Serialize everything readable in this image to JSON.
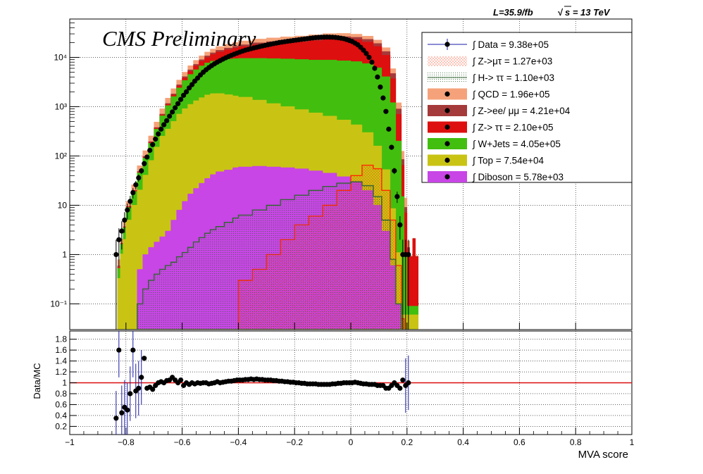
{
  "header": {
    "luminosity": "L=35.9/fb",
    "energy": "s = 13 TeV",
    "experiment": "CMS Preliminary"
  },
  "legend": [
    {
      "label": "∫ Data = 9.38e+05",
      "color": "#000000",
      "style": "data"
    },
    {
      "label": "∫ Z->μτ = 1.27e+03",
      "color": "#ff2a00",
      "style": "hatch-red"
    },
    {
      "label": "∫ H-> ττ = 1.10e+03",
      "color": "#336633",
      "style": "hatch-green"
    },
    {
      "label": "∫ QCD = 1.96e+05",
      "color": "#f5a27a",
      "style": "fill"
    },
    {
      "label": "∫ Z->ee/ μμ = 4.21e+04",
      "color": "#a53a3a",
      "style": "fill"
    },
    {
      "label": "∫ Z-> ττ = 2.10e+05",
      "color": "#dd0f0f",
      "style": "fill"
    },
    {
      "label": "∫ W+Jets = 4.05e+05",
      "color": "#42be0f",
      "style": "fill"
    },
    {
      "label": "∫ Top = 7.54e+04",
      "color": "#c9c414",
      "style": "fill"
    },
    {
      "label": "∫ Diboson = 5.78e+03",
      "color": "#c845e6",
      "style": "fill"
    }
  ],
  "chart_data": [
    {
      "type": "area",
      "panel": "main",
      "scale": "log",
      "xlim": [
        -1,
        1
      ],
      "ylim": [
        0.03,
        60000
      ],
      "ytick_labels": [
        "10⁻¹",
        "1",
        "10",
        "10²",
        "10³",
        "10⁴"
      ],
      "ytick_values": [
        0.1,
        1,
        10,
        100,
        1000,
        10000
      ],
      "x": [
        -0.83,
        -0.82,
        -0.81,
        -0.8,
        -0.78,
        -0.76,
        -0.74,
        -0.72,
        -0.7,
        -0.68,
        -0.66,
        -0.64,
        -0.62,
        -0.6,
        -0.58,
        -0.56,
        -0.54,
        -0.52,
        -0.5,
        -0.48,
        -0.45,
        -0.42,
        -0.4,
        -0.35,
        -0.3,
        -0.25,
        -0.2,
        -0.15,
        -0.1,
        -0.05,
        0.0,
        0.04,
        0.08,
        0.11,
        0.14,
        0.16,
        0.18,
        0.19,
        0.2,
        0.21,
        0.22,
        0.23
      ],
      "series": [
        {
          "name": "Diboson",
          "color": "#c845e6",
          "values": [
            0.03,
            0.03,
            0.03,
            0.03,
            0.03,
            0.5,
            1.0,
            1.4,
            1.8,
            2.3,
            3.0,
            5.0,
            8.0,
            12.0,
            17.0,
            22.0,
            28.0,
            35.0,
            42.0,
            48.0,
            52.0,
            58.0,
            60.0,
            62.0,
            60.0,
            58.0,
            55.0,
            50.0,
            45.0,
            38.0,
            30.0,
            20.0,
            10.0,
            3.0,
            0.6,
            0.1,
            0.03,
            0.03,
            0.03,
            0.03,
            0.03,
            0.03
          ]
        },
        {
          "name": "Top",
          "color": "#c9c414",
          "values": [
            0.3,
            1.0,
            2.0,
            5.0,
            10.0,
            20.0,
            40.0,
            80.0,
            150.0,
            250.0,
            350.0,
            500.0,
            700.0,
            900.0,
            1100.0,
            1300.0,
            1500.0,
            1700.0,
            1800.0,
            1800.0,
            1700.0,
            1600.0,
            1500.0,
            1300.0,
            1100.0,
            950.0,
            820.0,
            700.0,
            600.0,
            500.0,
            400.0,
            280.0,
            150.0,
            50.0,
            8.0,
            1.0,
            0.03,
            0.03,
            0.03,
            0.03,
            0.03,
            0.03
          ]
        },
        {
          "name": "W+Jets",
          "color": "#42be0f",
          "values": [
            0.2,
            0.6,
            1.5,
            4.0,
            9.0,
            25.0,
            50.0,
            100.0,
            200.0,
            400.0,
            700.0,
            1100.0,
            1700.0,
            2500.0,
            3400.0,
            4300.0,
            5200.0,
            6000.0,
            6600.0,
            7000.0,
            7500.0,
            7800.0,
            8000.0,
            8200.0,
            8300.0,
            8300.0,
            8200.0,
            8100.0,
            8200.0,
            8000.0,
            7800.0,
            7200.0,
            6000.0,
            4000.0,
            1200.0,
            200.0,
            15.0,
            1.0,
            0.03,
            0.03,
            0.03,
            0.03
          ]
        },
        {
          "name": "Z-> ττ",
          "color": "#dd0f0f",
          "values": [
            0.03,
            0.03,
            0.1,
            0.3,
            0.8,
            2.0,
            4.0,
            8.0,
            15.0,
            30.0,
            60.0,
            120.0,
            220.0,
            400.0,
            700.0,
            1100.0,
            1600.0,
            2200.0,
            3000.0,
            4000.0,
            5000.0,
            6000.0,
            7000.0,
            8500.0,
            9500.0,
            10500.0,
            11500.0,
            13000.0,
            14500.0,
            15000.0,
            14500.0,
            13000.0,
            10500.0,
            7000.0,
            2500.0,
            500.0,
            50.0,
            6.0,
            1.0,
            0.8,
            2.0,
            0.8
          ]
        },
        {
          "name": "Z->ee/ μμ",
          "color": "#a53a3a",
          "values": [
            0.03,
            0.03,
            0.05,
            0.1,
            0.3,
            1.0,
            3.0,
            6.0,
            12.0,
            25.0,
            50.0,
            90.0,
            150.0,
            250.0,
            380.0,
            500.0,
            650.0,
            800.0,
            950.0,
            1100.0,
            1250.0,
            1400.0,
            1500.0,
            1700.0,
            1900.0,
            2100.0,
            2300.0,
            2500.0,
            2700.0,
            2800.0,
            2800.0,
            2700.0,
            2500.0,
            2100.0,
            1000.0,
            200.0,
            20.0,
            2.0,
            0.3,
            0.03,
            0.03,
            0.03
          ]
        },
        {
          "name": "QCD",
          "color": "#f5a27a",
          "values": [
            0.2,
            0.4,
            1.0,
            2.5,
            6.0,
            15.0,
            30.0,
            60.0,
            110.0,
            200.0,
            330.0,
            500.0,
            700.0,
            950.0,
            1200.0,
            1500.0,
            1800.0,
            2100.0,
            2400.0,
            2700.0,
            3000.0,
            3300.0,
            3500.0,
            3800.0,
            4000.0,
            4200.0,
            4300.0,
            4400.0,
            4400.0,
            4300.0,
            4100.0,
            3800.0,
            3300.0,
            2600.0,
            1200.0,
            300.0,
            40.0,
            5.0,
            0.5,
            0.03,
            0.03,
            0.03
          ]
        }
      ],
      "overlays": [
        {
          "name": "Z->μτ",
          "color": "#ff2a00",
          "values": [
            0.03,
            0.03,
            0.03,
            0.03,
            0.03,
            0.03,
            0.03,
            0.03,
            0.03,
            0.03,
            0.03,
            0.03,
            0.03,
            0.03,
            0.03,
            0.03,
            0.03,
            0.03,
            0.03,
            0.03,
            0.03,
            0.03,
            0.3,
            0.5,
            1.0,
            2.0,
            4.0,
            6.0,
            10.0,
            20.0,
            40.0,
            65.0,
            55.0,
            20.0,
            5.0,
            0.6,
            0.05,
            0.03,
            0.03,
            0.03,
            0.03,
            0.03
          ]
        },
        {
          "name": "H-> ττ",
          "color": "#336633",
          "values": [
            0.03,
            0.03,
            0.03,
            0.03,
            0.03,
            0.1,
            0.2,
            0.3,
            0.4,
            0.5,
            0.6,
            0.7,
            0.9,
            1.1,
            1.4,
            1.8,
            2.2,
            2.7,
            3.2,
            3.7,
            4.5,
            5.5,
            6.3,
            8.0,
            10.0,
            13.0,
            16.0,
            20.0,
            24.0,
            28.0,
            30.0,
            25.0,
            15.0,
            5.0,
            0.8,
            0.1,
            0.03,
            0.03,
            0.03,
            0.03,
            0.03,
            0.03
          ]
        }
      ],
      "data_points": {
        "name": "Data",
        "x": [
          -0.835,
          -0.825,
          -0.815,
          -0.805,
          -0.795,
          -0.785,
          -0.775,
          -0.765,
          -0.755,
          -0.745,
          -0.735,
          -0.725,
          -0.715,
          -0.705,
          -0.695,
          -0.685,
          -0.675,
          -0.665,
          -0.655,
          -0.645,
          -0.635,
          -0.625,
          -0.615,
          -0.605,
          -0.595,
          -0.585,
          -0.575,
          -0.565,
          -0.555,
          -0.545,
          -0.535,
          -0.525,
          -0.515,
          -0.505,
          -0.495,
          -0.485,
          -0.475,
          -0.465,
          -0.455,
          -0.445,
          -0.435,
          -0.425,
          -0.415,
          -0.405,
          -0.395,
          -0.385,
          -0.375,
          -0.365,
          -0.355,
          -0.345,
          -0.335,
          -0.325,
          -0.315,
          -0.305,
          -0.295,
          -0.285,
          -0.275,
          -0.265,
          -0.255,
          -0.245,
          -0.235,
          -0.225,
          -0.215,
          -0.205,
          -0.195,
          -0.185,
          -0.175,
          -0.165,
          -0.155,
          -0.145,
          -0.135,
          -0.125,
          -0.115,
          -0.105,
          -0.095,
          -0.085,
          -0.075,
          -0.065,
          -0.055,
          -0.045,
          -0.035,
          -0.025,
          -0.015,
          -0.005,
          0.005,
          0.015,
          0.025,
          0.035,
          0.045,
          0.055,
          0.065,
          0.075,
          0.085,
          0.095,
          0.105,
          0.115,
          0.125,
          0.135,
          0.145,
          0.155,
          0.165,
          0.175,
          0.185,
          0.195,
          0.205
        ],
        "y": [
          1.0,
          2.0,
          3.0,
          5.0,
          8.0,
          12.0,
          18.0,
          26.0,
          36.0,
          50.0,
          70.0,
          95.0,
          130.0,
          170.0,
          220.0,
          280.0,
          350.0,
          430.0,
          520.0,
          640.0,
          780.0,
          950.0,
          1150.0,
          1400.0,
          1700.0,
          2000.0,
          2400.0,
          2800.0,
          3300.0,
          3800.0,
          4400.0,
          5000.0,
          5600.0,
          6200.0,
          6800.0,
          7400.0,
          8000.0,
          8600.0,
          9200.0,
          9800.0,
          10400.0,
          11000.0,
          11600.0,
          12200.0,
          12800.0,
          13400.0,
          14000.0,
          14500.0,
          15000.0,
          15500.0,
          16000.0,
          16500.0,
          17000.0,
          17500.0,
          18000.0,
          18500.0,
          19000.0,
          19500.0,
          20000.0,
          20400.0,
          20800.0,
          21200.0,
          21600.0,
          22000.0,
          22400.0,
          22800.0,
          23200.0,
          23600.0,
          24000.0,
          24400.0,
          24800.0,
          25200.0,
          25400.0,
          25600.0,
          25700.0,
          25800.0,
          25700.0,
          25600.0,
          25400.0,
          25000.0,
          24500.0,
          24000.0,
          23000.0,
          22000.0,
          21000.0,
          19500.0,
          18000.0,
          16000.0,
          14000.0,
          12000.0,
          10000.0,
          8000.0,
          6000.0,
          4000.0,
          2500.0,
          1500.0,
          800.0,
          350.0,
          150.0,
          50.0,
          15.0,
          4.0,
          1.0,
          1.0,
          1.0
        ]
      }
    },
    {
      "type": "scatter",
      "panel": "ratio",
      "ylabel": "Data/MC",
      "xlabel": "MVA score",
      "xlim": [
        -1,
        1
      ],
      "ylim": [
        0.05,
        1.95
      ],
      "xtick_labels": [
        "−1",
        "−0.8",
        "−0.6",
        "−0.4",
        "−0.2",
        "0",
        "0.2",
        "0.4",
        "0.6",
        "0.8",
        "1"
      ],
      "xtick_values": [
        -1,
        -0.8,
        -0.6,
        -0.4,
        -0.2,
        0,
        0.2,
        0.4,
        0.6,
        0.8,
        1
      ],
      "ytick_labels": [
        "0.2",
        "0.4",
        "0.6",
        "0.8",
        "1",
        "1.2",
        "1.4",
        "1.6",
        "1.8"
      ],
      "ytick_values": [
        0.2,
        0.4,
        0.6,
        0.8,
        1.0,
        1.2,
        1.4,
        1.6,
        1.8
      ],
      "reference_line": 1.0,
      "x": [
        -0.835,
        -0.825,
        -0.815,
        -0.805,
        -0.795,
        -0.785,
        -0.775,
        -0.765,
        -0.755,
        -0.745,
        -0.735,
        -0.725,
        -0.715,
        -0.705,
        -0.695,
        -0.685,
        -0.675,
        -0.665,
        -0.655,
        -0.645,
        -0.635,
        -0.625,
        -0.615,
        -0.605,
        -0.595,
        -0.585,
        -0.575,
        -0.565,
        -0.555,
        -0.545,
        -0.535,
        -0.525,
        -0.515,
        -0.505,
        -0.495,
        -0.485,
        -0.475,
        -0.465,
        -0.455,
        -0.445,
        -0.435,
        -0.425,
        -0.415,
        -0.405,
        -0.395,
        -0.385,
        -0.375,
        -0.365,
        -0.355,
        -0.345,
        -0.335,
        -0.325,
        -0.315,
        -0.305,
        -0.295,
        -0.285,
        -0.275,
        -0.265,
        -0.255,
        -0.245,
        -0.235,
        -0.225,
        -0.215,
        -0.205,
        -0.195,
        -0.185,
        -0.175,
        -0.165,
        -0.155,
        -0.145,
        -0.135,
        -0.125,
        -0.115,
        -0.105,
        -0.095,
        -0.085,
        -0.075,
        -0.065,
        -0.055,
        -0.045,
        -0.035,
        -0.025,
        -0.015,
        -0.005,
        0.005,
        0.015,
        0.025,
        0.035,
        0.045,
        0.055,
        0.065,
        0.075,
        0.085,
        0.095,
        0.105,
        0.115,
        0.125,
        0.135,
        0.145,
        0.155,
        0.165,
        0.175,
        0.185,
        0.195,
        0.205
      ],
      "y": [
        0.35,
        1.6,
        0.45,
        0.55,
        0.5,
        0.8,
        1.6,
        0.85,
        0.9,
        1.1,
        1.45,
        0.9,
        0.92,
        0.88,
        0.95,
        1.0,
        1.02,
        1.0,
        1.04,
        1.05,
        1.1,
        1.05,
        1.0,
        1.05,
        0.95,
        1.0,
        0.97,
        1.0,
        0.98,
        1.0,
        0.99,
        1.0,
        1.0,
        0.98,
        0.99,
        1.0,
        1.02,
        1.0,
        1.01,
        1.02,
        1.03,
        1.03,
        1.04,
        1.05,
        1.05,
        1.05,
        1.06,
        1.06,
        1.07,
        1.06,
        1.07,
        1.06,
        1.06,
        1.05,
        1.05,
        1.05,
        1.04,
        1.04,
        1.03,
        1.03,
        1.02,
        1.02,
        1.01,
        1.01,
        1.0,
        1.0,
        0.99,
        0.99,
        0.98,
        0.98,
        0.98,
        0.98,
        0.97,
        0.97,
        0.97,
        0.97,
        0.97,
        0.98,
        0.98,
        0.99,
        0.99,
        1.0,
        1.0,
        1.0,
        1.0,
        1.01,
        1.0,
        0.99,
        0.98,
        0.98,
        0.97,
        0.97,
        0.97,
        0.95,
        0.95,
        0.95,
        0.9,
        0.9,
        0.95,
        1.0,
        0.95,
        0.9,
        1.05,
        0.95,
        1.0
      ]
    }
  ]
}
